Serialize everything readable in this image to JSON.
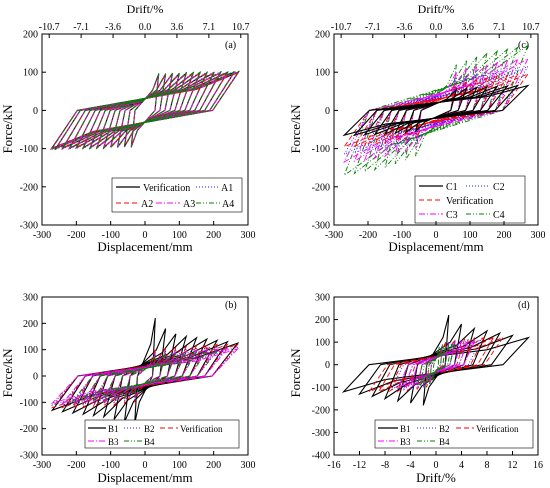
{
  "colors": {
    "verification": "#000000",
    "a1": "#1a1aff",
    "a2": "#ff0000",
    "a3": "#ff00ff",
    "a4": "#008000",
    "b1": "#000000",
    "b2": "#1a1aff",
    "b3": "#ff00ff",
    "b4": "#008000",
    "c1": "#000000",
    "c2": "#1a1aff",
    "c3": "#ff00ff",
    "c4": "#008000",
    "verif_red": "#ff0000"
  },
  "chart_data": [
    {
      "id": "a",
      "type": "line",
      "panel_label": "(a)",
      "xlabel": "Displacement/mm",
      "ylabel": "Force/kN",
      "top_xlabel": "Drift/%",
      "xlim": [
        -300,
        300
      ],
      "ylim": [
        -300,
        200
      ],
      "xticks": [
        "-300",
        "-200",
        "-100",
        "0",
        "100",
        "200",
        "300"
      ],
      "yticks": [
        "-300",
        "-200",
        "-100",
        "0",
        "100",
        "200"
      ],
      "top_ticks": [
        "-10.7",
        "-7.1",
        "-3.6",
        "0.0",
        "3.6",
        "7.1",
        "10.7"
      ],
      "legend": [
        {
          "name": "Verification",
          "style": "solid",
          "color": "#000000"
        },
        {
          "name": "A1",
          "style": "dot",
          "color": "#1a1aff"
        },
        {
          "name": "A2",
          "style": "dash",
          "color": "#ff0000"
        },
        {
          "name": "A3",
          "style": "dashdot",
          "color": "#ff00ff"
        },
        {
          "name": "A4",
          "style": "dashdotdot",
          "color": "#008000"
        }
      ],
      "series": [
        {
          "style": "solid",
          "color": "#000000",
          "xmax": [
            40,
            60,
            80,
            100,
            120,
            140,
            160,
            180,
            200,
            220,
            240,
            260,
            272
          ],
          "fy": [
            95,
            95,
            96,
            96,
            97,
            97,
            98,
            98,
            98,
            99,
            99,
            100,
            100
          ],
          "fneg": [
            -95,
            -95,
            -96,
            -96,
            -97,
            -97,
            -98,
            -98,
            -98,
            -99,
            -99,
            -100,
            -100
          ]
        },
        {
          "style": "dot",
          "color": "#1a1aff",
          "xmax": [
            40,
            60,
            80,
            100,
            120,
            140,
            160,
            180,
            200,
            220,
            240,
            260,
            272
          ],
          "fy": [
            96,
            96,
            97,
            97,
            98,
            98,
            99,
            99,
            99,
            100,
            100,
            101,
            101
          ],
          "fneg": [
            -96,
            -96,
            -97,
            -97,
            -98,
            -98,
            -99,
            -99,
            -99,
            -100,
            -100,
            -101,
            -101
          ]
        },
        {
          "style": "dash",
          "color": "#ff0000",
          "xmax": [
            40,
            60,
            80,
            100,
            120,
            140,
            160,
            180,
            200,
            220,
            240,
            260,
            272
          ],
          "fy": [
            94,
            94,
            95,
            95,
            96,
            96,
            97,
            97,
            97,
            98,
            98,
            99,
            99
          ],
          "fneg": [
            -94,
            -94,
            -95,
            -95,
            -96,
            -96,
            -97,
            -97,
            -97,
            -98,
            -98,
            -99,
            -99
          ]
        },
        {
          "style": "dashdot",
          "color": "#ff00ff",
          "xmax": [
            40,
            60,
            80,
            100,
            120,
            140,
            160,
            180,
            200,
            220,
            240,
            260,
            272
          ],
          "fy": [
            95,
            96,
            96,
            97,
            97,
            98,
            98,
            98,
            99,
            99,
            100,
            100,
            101
          ],
          "fneg": [
            -95,
            -96,
            -96,
            -97,
            -97,
            -98,
            -98,
            -98,
            -99,
            -99,
            -100,
            -100,
            -101
          ]
        },
        {
          "style": "dashdotdot",
          "color": "#008000",
          "xmax": [
            40,
            60,
            80,
            100,
            120,
            140,
            160,
            180,
            200,
            220,
            240,
            260,
            272
          ],
          "fy": [
            97,
            97,
            98,
            98,
            99,
            99,
            100,
            100,
            100,
            101,
            101,
            102,
            102
          ],
          "fneg": [
            -97,
            -97,
            -98,
            -98,
            -99,
            -99,
            -100,
            -100,
            -100,
            -101,
            -101,
            -102,
            -102
          ]
        }
      ]
    },
    {
      "id": "c",
      "type": "line",
      "panel_label": "(c)",
      "xlabel": "Displacement/mm",
      "ylabel": "Force/kN",
      "top_xlabel": "Drift/%",
      "xlim": [
        -300,
        300
      ],
      "ylim": [
        -300,
        200
      ],
      "xticks": [
        "-300",
        "-200",
        "-100",
        "0",
        "100",
        "200",
        "300"
      ],
      "yticks": [
        "-300",
        "-200",
        "-100",
        "0",
        "100",
        "200"
      ],
      "top_ticks": [
        "-10.7",
        "-7.1",
        "-3.6",
        "0.0",
        "3.6",
        "7.1",
        "10.7"
      ],
      "legend": [
        {
          "name": "C1",
          "style": "solid",
          "color": "#000000"
        },
        {
          "name": "C2",
          "style": "dot",
          "color": "#1a1aff"
        },
        {
          "name": "Verification",
          "style": "dash",
          "color": "#ff0000"
        },
        {
          "name": "C3",
          "style": "dashdot",
          "color": "#ff00ff"
        },
        {
          "name": "C4",
          "style": "dashdotdot",
          "color": "#008000"
        }
      ],
      "series": [
        {
          "style": "dashdotdot",
          "color": "#008000",
          "xmax": [
            60,
            90,
            120,
            150,
            180,
            210,
            240,
            270
          ],
          "fy": [
            120,
            130,
            140,
            150,
            155,
            160,
            165,
            170
          ],
          "fneg": [
            -120,
            -130,
            -140,
            -150,
            -155,
            -160,
            -165,
            -170
          ]
        },
        {
          "style": "dashdot",
          "color": "#ff00ff",
          "xmax": [
            60,
            90,
            120,
            150,
            180,
            210,
            240,
            270
          ],
          "fy": [
            100,
            110,
            115,
            120,
            125,
            130,
            133,
            135
          ],
          "fneg": [
            -100,
            -110,
            -115,
            -120,
            -125,
            -130,
            -133,
            -135
          ]
        },
        {
          "style": "dot",
          "color": "#1a1aff",
          "xmax": [
            60,
            90,
            120,
            150,
            180,
            210,
            240,
            270
          ],
          "fy": [
            85,
            90,
            95,
            100,
            105,
            110,
            112,
            115
          ],
          "fneg": [
            -85,
            -90,
            -95,
            -100,
            -105,
            -110,
            -112,
            -115
          ]
        },
        {
          "style": "dash",
          "color": "#ff0000",
          "xmax": [
            60,
            90,
            120,
            150,
            180,
            210,
            240,
            270
          ],
          "fy": [
            70,
            75,
            80,
            85,
            90,
            92,
            94,
            95
          ],
          "fneg": [
            -70,
            -75,
            -80,
            -85,
            -90,
            -92,
            -94,
            -95
          ]
        },
        {
          "style": "solid",
          "color": "#000000",
          "xmax": [
            60,
            90,
            120,
            150,
            180,
            210,
            240,
            270
          ],
          "fy": [
            55,
            58,
            60,
            62,
            63,
            64,
            65,
            65
          ],
          "fneg": [
            -55,
            -58,
            -60,
            -62,
            -63,
            -64,
            -65,
            -65
          ]
        }
      ]
    },
    {
      "id": "b",
      "type": "line",
      "panel_label": "(b)",
      "xlabel": "Displacement/mm",
      "ylabel": "Force/kN",
      "top_xlabel": "",
      "xlim": [
        -300,
        300
      ],
      "ylim": [
        -300,
        300
      ],
      "xticks": [
        "-300",
        "-200",
        "-100",
        "0",
        "100",
        "200",
        "300"
      ],
      "yticks": [
        "-300",
        "-200",
        "-100",
        "0",
        "100",
        "200",
        "300"
      ],
      "top_ticks": [],
      "legend": [
        {
          "name": "B1",
          "style": "solid",
          "color": "#000000"
        },
        {
          "name": "B2",
          "style": "dot",
          "color": "#1a1aff"
        },
        {
          "name": "Verification",
          "style": "dash",
          "color": "#ff0000"
        },
        {
          "name": "B3",
          "style": "dashdot",
          "color": "#ff00ff"
        },
        {
          "name": "B4",
          "style": "dashdotdot",
          "color": "#008000"
        }
      ],
      "series": [
        {
          "style": "solid",
          "color": "#000000",
          "xmax": [
            30,
            60,
            90,
            120,
            150,
            180,
            210,
            240,
            270
          ],
          "fy": [
            220,
            180,
            160,
            150,
            145,
            140,
            135,
            130,
            125
          ],
          "fneg": [
            -180,
            -175,
            -165,
            -155,
            -150,
            -145,
            -140,
            -135,
            -130
          ]
        },
        {
          "style": "dash",
          "color": "#ff0000",
          "xmax": [
            30,
            60,
            90,
            120,
            150,
            180,
            210,
            240,
            270
          ],
          "fy": [
            100,
            105,
            110,
            112,
            115,
            118,
            120,
            120,
            120
          ],
          "fneg": [
            -100,
            -105,
            -110,
            -112,
            -115,
            -118,
            -120,
            -120,
            -120
          ]
        },
        {
          "style": "dot",
          "color": "#1a1aff",
          "xmax": [
            30,
            60,
            90,
            120,
            150,
            180,
            210,
            240,
            270
          ],
          "fy": [
            90,
            95,
            100,
            103,
            106,
            108,
            110,
            110,
            110
          ],
          "fneg": [
            -90,
            -95,
            -100,
            -103,
            -106,
            -108,
            -110,
            -110,
            -110
          ]
        },
        {
          "style": "dashdot",
          "color": "#ff00ff",
          "xmax": [
            30,
            60,
            90,
            120,
            150,
            180,
            210,
            240,
            270
          ],
          "fy": [
            85,
            88,
            92,
            95,
            98,
            100,
            102,
            103,
            103
          ],
          "fneg": [
            -85,
            -88,
            -92,
            -95,
            -98,
            -100,
            -102,
            -103,
            -103
          ]
        },
        {
          "style": "dashdotdot",
          "color": "#008000",
          "xmax": [
            30,
            60,
            90,
            120,
            150,
            180,
            210
          ],
          "fy": [
            80,
            85,
            88,
            90,
            92,
            93,
            94
          ],
          "fneg": [
            -80,
            -85,
            -88,
            -90,
            -92,
            -93,
            -94
          ]
        }
      ]
    },
    {
      "id": "d",
      "type": "line",
      "panel_label": "(d)",
      "xlabel": "Drift/%",
      "ylabel": "Force/kN",
      "top_xlabel": "",
      "xlim": [
        -16,
        16
      ],
      "ylim": [
        -400,
        300
      ],
      "xticks": [
        "-16",
        "-12",
        "-8",
        "-4",
        "0",
        "4",
        "8",
        "12",
        "16"
      ],
      "yticks": [
        "-400",
        "-300",
        "-200",
        "-100",
        "0",
        "100",
        "200",
        "300"
      ],
      "top_ticks": [],
      "legend": [
        {
          "name": "B1",
          "style": "solid",
          "color": "#000000"
        },
        {
          "name": "B2",
          "style": "dot",
          "color": "#1a1aff"
        },
        {
          "name": "Verification",
          "style": "dash",
          "color": "#ff0000"
        },
        {
          "name": "B3",
          "style": "dashdot",
          "color": "#ff00ff"
        },
        {
          "name": "B4",
          "style": "dashdotdot",
          "color": "#008000"
        }
      ],
      "series": [
        {
          "style": "solid",
          "color": "#000000",
          "xmax": [
            2,
            4,
            6,
            8,
            10,
            12,
            14.5
          ],
          "fy": [
            220,
            180,
            160,
            150,
            140,
            130,
            120
          ],
          "fneg": [
            -180,
            -170,
            -160,
            -150,
            -140,
            -130,
            -120
          ]
        },
        {
          "style": "dash",
          "color": "#ff0000",
          "xmax": [
            1.5,
            3,
            4.5,
            6,
            7.5,
            9,
            10.5
          ],
          "fy": [
            100,
            110,
            115,
            118,
            120,
            120,
            120
          ],
          "fneg": [
            -100,
            -110,
            -115,
            -118,
            -120,
            -120,
            -120
          ]
        },
        {
          "style": "dot",
          "color": "#1a1aff",
          "xmax": [
            1,
            2,
            3,
            4,
            5,
            6,
            7
          ],
          "fy": [
            90,
            100,
            105,
            108,
            110,
            110,
            110
          ],
          "fneg": [
            -90,
            -100,
            -105,
            -108,
            -110,
            -110,
            -110
          ]
        },
        {
          "style": "dashdot",
          "color": "#ff00ff",
          "xmax": [
            1,
            2,
            3,
            4,
            5,
            6
          ],
          "fy": [
            85,
            95,
            100,
            102,
            103,
            103
          ],
          "fneg": [
            -85,
            -95,
            -100,
            -102,
            -103,
            -103
          ]
        },
        {
          "style": "dashdotdot",
          "color": "#008000",
          "xmax": [
            0.5,
            1,
            1.5,
            2,
            2.5,
            3
          ],
          "fy": [
            80,
            85,
            88,
            90,
            92,
            93
          ],
          "fneg": [
            -80,
            -85,
            -88,
            -90,
            -92,
            -93
          ]
        }
      ]
    }
  ]
}
